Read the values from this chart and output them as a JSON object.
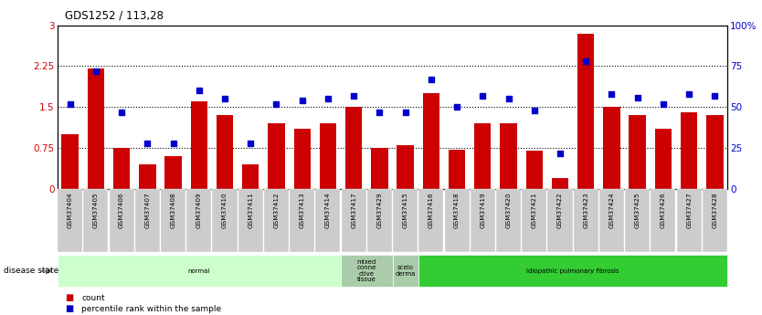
{
  "title": "GDS1252 / 113,28",
  "samples": [
    "GSM37404",
    "GSM37405",
    "GSM37406",
    "GSM37407",
    "GSM37408",
    "GSM37409",
    "GSM37410",
    "GSM37411",
    "GSM37412",
    "GSM37413",
    "GSM37414",
    "GSM37417",
    "GSM37429",
    "GSM37415",
    "GSM37416",
    "GSM37418",
    "GSM37419",
    "GSM37420",
    "GSM37421",
    "GSM37422",
    "GSM37423",
    "GSM37424",
    "GSM37425",
    "GSM37426",
    "GSM37427",
    "GSM37428"
  ],
  "bar_values": [
    1.0,
    2.2,
    0.75,
    0.45,
    0.6,
    1.6,
    1.35,
    0.45,
    1.2,
    1.1,
    1.2,
    1.5,
    0.75,
    0.8,
    1.75,
    0.72,
    1.2,
    1.2,
    0.7,
    0.2,
    2.85,
    1.5,
    1.35,
    1.1,
    1.4,
    1.35
  ],
  "dot_values": [
    52,
    72,
    47,
    28,
    28,
    60,
    55,
    28,
    52,
    54,
    55,
    57,
    47,
    47,
    67,
    50,
    57,
    55,
    48,
    22,
    78,
    58,
    56,
    52,
    58,
    57
  ],
  "bar_color": "#cc0000",
  "dot_color": "#0000cc",
  "ylim_left": [
    0,
    3
  ],
  "ylim_right": [
    0,
    100
  ],
  "yticks_left": [
    0,
    0.75,
    1.5,
    2.25,
    3
  ],
  "yticks_right": [
    0,
    25,
    50,
    75,
    100
  ],
  "ytick_labels_left": [
    "0",
    "0.75",
    "1.5",
    "2.25",
    "3"
  ],
  "ytick_labels_right": [
    "0",
    "25",
    "50",
    "75",
    "100%"
  ],
  "hlines": [
    0.75,
    1.5,
    2.25
  ],
  "disease_groups": [
    {
      "label": "normal",
      "start": 0,
      "end": 11,
      "color": "#ccffcc"
    },
    {
      "label": "mixed\nconne\nctive\ntissue",
      "start": 11,
      "end": 13,
      "color": "#aaccaa"
    },
    {
      "label": "scelo\nderma",
      "start": 13,
      "end": 14,
      "color": "#aaccaa"
    },
    {
      "label": "idiopathic pulmonary fibrosis",
      "start": 14,
      "end": 26,
      "color": "#33cc33"
    }
  ],
  "disease_state_label": "disease state",
  "legend_items": [
    {
      "label": "count",
      "color": "#cc0000",
      "marker": "s"
    },
    {
      "label": "percentile rank within the sample",
      "color": "#0000cc",
      "marker": "s"
    }
  ],
  "background_color": "#ffffff",
  "plot_bg_color": "#ffffff",
  "tick_label_bg": "#cccccc"
}
